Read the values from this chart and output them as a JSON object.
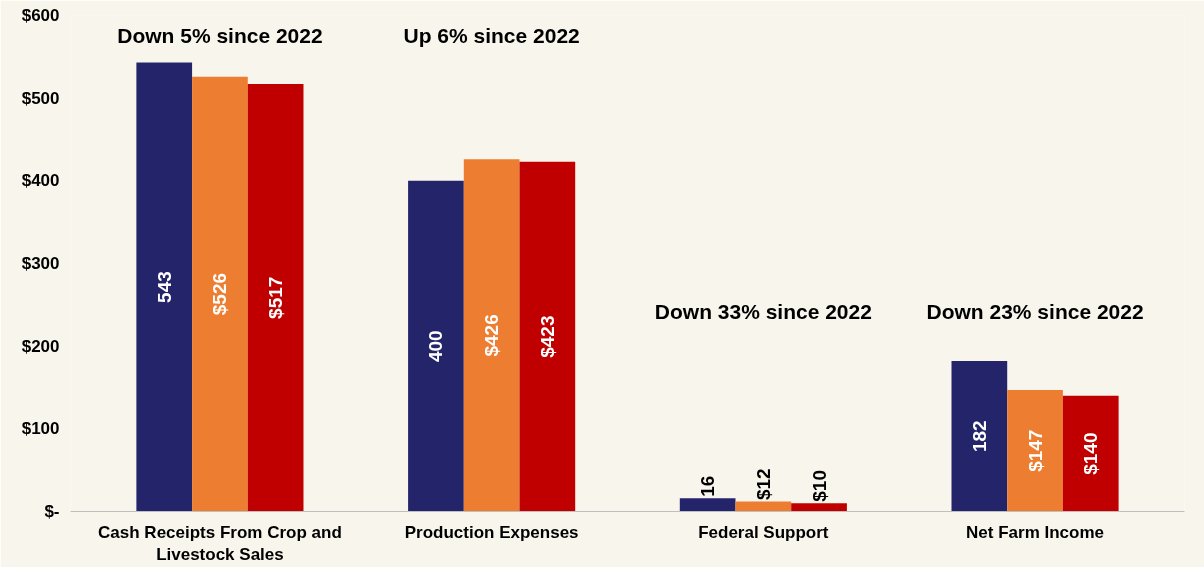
{
  "chart_data": {
    "type": "bar",
    "categories": [
      "Cash Receipts From Crop and Livestock Sales",
      "Production Expenses",
      "Federal Support",
      "Net Farm Income"
    ],
    "series": [
      {
        "color": "#24246b",
        "values": [
          543,
          400,
          16,
          182
        ],
        "value_labels": [
          "543",
          "400",
          "16",
          "182"
        ]
      },
      {
        "color": "#ed7d31",
        "values": [
          526,
          426,
          12,
          147
        ],
        "value_labels": [
          "$526",
          "$426",
          "$12",
          "$147"
        ]
      },
      {
        "color": "#c00000",
        "values": [
          517,
          423,
          10,
          140
        ],
        "value_labels": [
          "$517",
          "$423",
          "$10",
          "$140"
        ]
      }
    ],
    "ylim": [
      0,
      600
    ],
    "yticks": [
      {
        "value": 0,
        "label": "$-"
      },
      {
        "value": 100,
        "label": "$100"
      },
      {
        "value": 200,
        "label": "$200"
      },
      {
        "value": 300,
        "label": "$300"
      },
      {
        "value": 400,
        "label": "$400"
      },
      {
        "value": 500,
        "label": "$500"
      },
      {
        "value": 600,
        "label": "$600"
      }
    ],
    "grid": false,
    "annotations": [
      "Down 5% since 2022",
      "Up 6% since 2022",
      "Down 33% since 2022",
      "Down 23% since 2022"
    ]
  }
}
